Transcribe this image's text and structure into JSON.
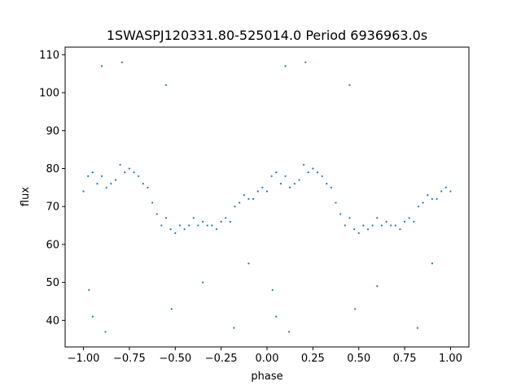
{
  "chart_data": {
    "type": "scatter",
    "title": "1SWASPJ120331.80-525014.0 Period 6936963.0s",
    "xlabel": "phase",
    "ylabel": "flux",
    "xlim": [
      -1.1,
      1.1
    ],
    "ylim": [
      33,
      112
    ],
    "xticks": [
      -1.0,
      -0.75,
      -0.5,
      -0.25,
      0.0,
      0.25,
      0.5,
      0.75,
      1.0
    ],
    "xtick_labels": [
      "−1.00",
      "−0.75",
      "−0.50",
      "−0.25",
      "0.00",
      "0.25",
      "0.50",
      "0.75",
      "1.00"
    ],
    "yticks": [
      40,
      50,
      60,
      70,
      80,
      90,
      100,
      110
    ],
    "ytick_labels": [
      "40",
      "50",
      "60",
      "70",
      "80",
      "90",
      "100",
      "110"
    ],
    "grid": false,
    "color": "#1f77b4",
    "series": [
      {
        "points": [
          [
            -1.0,
            74
          ],
          [
            -0.975,
            78
          ],
          [
            -0.95,
            79
          ],
          [
            -0.925,
            76
          ],
          [
            -0.9,
            78
          ],
          [
            -0.875,
            75
          ],
          [
            -0.85,
            76
          ],
          [
            -0.825,
            77
          ],
          [
            -0.8,
            81
          ],
          [
            -0.775,
            79
          ],
          [
            -0.75,
            80
          ],
          [
            -0.725,
            79
          ],
          [
            -0.7,
            78
          ],
          [
            -0.675,
            76
          ],
          [
            -0.65,
            75
          ],
          [
            -0.625,
            71
          ],
          [
            -0.6,
            68
          ],
          [
            -0.575,
            65
          ],
          [
            -0.55,
            67
          ],
          [
            -0.525,
            64
          ],
          [
            -0.5,
            63
          ],
          [
            -0.475,
            65
          ],
          [
            -0.45,
            64
          ],
          [
            -0.425,
            65
          ],
          [
            -0.4,
            67
          ],
          [
            -0.375,
            65
          ],
          [
            -0.35,
            66
          ],
          [
            -0.325,
            65
          ],
          [
            -0.3,
            65
          ],
          [
            -0.275,
            64
          ],
          [
            -0.25,
            66
          ],
          [
            -0.225,
            67
          ],
          [
            -0.2,
            66
          ],
          [
            -0.175,
            70
          ],
          [
            -0.15,
            71
          ],
          [
            -0.125,
            73
          ],
          [
            -0.1,
            72
          ],
          [
            -0.075,
            72
          ],
          [
            -0.05,
            74
          ],
          [
            -0.025,
            75
          ],
          [
            0.0,
            74
          ],
          [
            0.025,
            78
          ],
          [
            0.05,
            79
          ],
          [
            0.075,
            76
          ],
          [
            0.1,
            78
          ],
          [
            0.125,
            75
          ],
          [
            0.15,
            76
          ],
          [
            0.175,
            77
          ],
          [
            0.2,
            81
          ],
          [
            0.225,
            79
          ],
          [
            0.25,
            80
          ],
          [
            0.275,
            79
          ],
          [
            0.3,
            78
          ],
          [
            0.325,
            76
          ],
          [
            0.35,
            75
          ],
          [
            0.375,
            71
          ],
          [
            0.4,
            68
          ],
          [
            0.425,
            65
          ],
          [
            0.45,
            67
          ],
          [
            0.475,
            64
          ],
          [
            0.5,
            63
          ],
          [
            0.525,
            65
          ],
          [
            0.55,
            64
          ],
          [
            0.575,
            65
          ],
          [
            0.6,
            67
          ],
          [
            0.625,
            65
          ],
          [
            0.65,
            66
          ],
          [
            0.675,
            65
          ],
          [
            0.7,
            65
          ],
          [
            0.725,
            64
          ],
          [
            0.75,
            66
          ],
          [
            0.775,
            67
          ],
          [
            0.8,
            66
          ],
          [
            0.825,
            70
          ],
          [
            0.85,
            71
          ],
          [
            0.875,
            73
          ],
          [
            0.9,
            72
          ],
          [
            0.925,
            72
          ],
          [
            0.95,
            74
          ],
          [
            0.975,
            75
          ],
          [
            1.0,
            74
          ],
          [
            -0.95,
            41
          ],
          [
            -0.88,
            37
          ],
          [
            -0.52,
            43
          ],
          [
            -0.18,
            38
          ],
          [
            0.05,
            41
          ],
          [
            0.12,
            37
          ],
          [
            0.48,
            43
          ],
          [
            0.82,
            38
          ],
          [
            -0.79,
            108
          ],
          [
            -0.9,
            107
          ],
          [
            0.21,
            108
          ],
          [
            0.1,
            107
          ],
          [
            -0.55,
            102
          ],
          [
            0.45,
            102
          ],
          [
            -0.35,
            50
          ],
          [
            0.6,
            49
          ],
          [
            -0.1,
            55
          ],
          [
            0.9,
            55
          ],
          [
            -0.97,
            48
          ],
          [
            0.03,
            48
          ]
        ]
      }
    ]
  }
}
